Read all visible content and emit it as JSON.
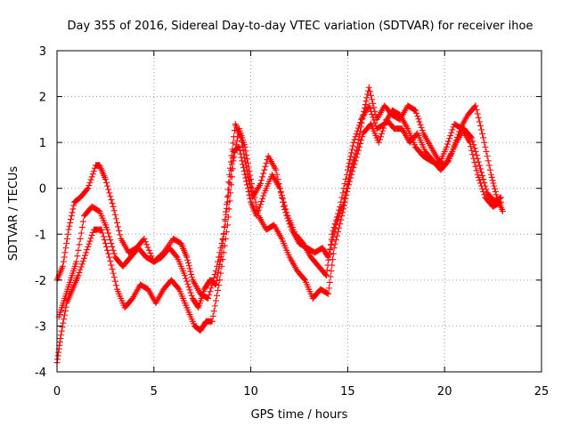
{
  "chart_data": {
    "type": "scatter",
    "title": "Day 355 of 2016, Sidereal Day-to-day VTEC variation (SDTVAR) for receiver ihoe",
    "xlabel": "GPS time / hours",
    "ylabel": "SDTVAR / TECUs",
    "xlim": [
      0,
      25
    ],
    "ylim": [
      -4,
      3
    ],
    "xticks": [
      "0",
      "5",
      "10",
      "15",
      "20",
      "25"
    ],
    "yticks": [
      "-4",
      "-3",
      "-2",
      "-1",
      "0",
      "1",
      "2",
      "3"
    ],
    "grid": true,
    "marker": "+",
    "color": "#ff0000",
    "series": [
      {
        "name": "trace-a",
        "x": [
          0.0,
          0.3,
          0.6,
          0.9,
          1.2,
          1.6,
          2.0,
          2.2,
          2.5,
          2.9,
          3.3,
          3.7,
          4.1,
          4.5,
          5.0,
          5.5,
          6.0,
          6.4,
          6.7,
          7.0,
          7.4,
          7.8,
          8.2,
          8.6,
          8.9,
          9.2,
          9.5,
          9.8,
          10.1,
          10.5,
          10.9,
          11.3,
          11.7,
          12.1,
          12.5,
          12.9,
          13.3,
          13.7,
          14.0,
          14.4,
          14.8,
          15.1,
          15.5,
          15.8,
          16.1,
          16.5,
          16.9,
          17.3,
          17.7,
          18.1,
          18.5,
          18.9,
          19.3,
          19.7,
          20.0,
          20.4,
          20.8,
          21.2,
          21.6,
          22.0,
          22.4,
          22.7,
          23.0
        ],
        "y": [
          -2.0,
          -1.7,
          -0.9,
          -0.3,
          -0.2,
          0.0,
          0.5,
          0.5,
          0.2,
          -0.4,
          -1.1,
          -1.4,
          -1.3,
          -1.1,
          -1.6,
          -1.4,
          -1.1,
          -1.2,
          -1.5,
          -2.0,
          -2.3,
          -2.4,
          -1.8,
          -1.0,
          0.3,
          1.4,
          1.1,
          0.4,
          -0.2,
          0.1,
          0.7,
          0.4,
          -0.4,
          -0.9,
          -1.2,
          -1.3,
          -1.4,
          -1.3,
          -1.5,
          -0.8,
          -0.3,
          0.3,
          0.9,
          1.6,
          2.2,
          1.5,
          1.8,
          1.6,
          1.5,
          1.8,
          1.7,
          1.2,
          0.9,
          0.6,
          0.5,
          0.8,
          1.3,
          1.6,
          1.8,
          1.1,
          0.3,
          -0.2,
          -0.5
        ]
      },
      {
        "name": "trace-b",
        "x": [
          0.0,
          0.2,
          0.5,
          0.8,
          1.1,
          1.5,
          1.9,
          2.3,
          2.7,
          3.1,
          3.5,
          3.9,
          4.3,
          4.7,
          5.1,
          5.5,
          5.9,
          6.3,
          6.7,
          7.1,
          7.4,
          7.7,
          8.0,
          8.4,
          8.8,
          9.1,
          9.4,
          9.7,
          10.0,
          10.4,
          10.8,
          11.2,
          11.6,
          12.0,
          12.4,
          12.8,
          13.2,
          13.6,
          14.0,
          14.3,
          14.7,
          15.0,
          15.4,
          15.8,
          16.2,
          16.6,
          17.0,
          17.4,
          17.8,
          18.2,
          18.6,
          19.0,
          19.4,
          19.8,
          20.2,
          20.6,
          21.0,
          21.4,
          21.8,
          22.2,
          22.6,
          22.9
        ],
        "y": [
          -3.8,
          -3.2,
          -2.5,
          -2.2,
          -1.9,
          -1.4,
          -0.9,
          -0.9,
          -1.5,
          -2.2,
          -2.6,
          -2.4,
          -2.1,
          -2.2,
          -2.5,
          -2.2,
          -2.0,
          -2.2,
          -2.6,
          -3.0,
          -3.1,
          -2.9,
          -2.9,
          -2.0,
          -0.8,
          0.6,
          1.3,
          0.9,
          0.2,
          -0.6,
          -0.9,
          -0.8,
          -1.1,
          -1.5,
          -1.8,
          -2.0,
          -2.4,
          -2.2,
          -2.3,
          -1.3,
          -0.6,
          0.0,
          0.6,
          1.2,
          1.4,
          1.0,
          1.5,
          1.3,
          1.3,
          1.0,
          1.2,
          0.8,
          0.6,
          0.4,
          0.6,
          1.0,
          1.3,
          1.1,
          0.5,
          -0.1,
          -0.3,
          -0.2
        ]
      },
      {
        "name": "trace-c",
        "x": [
          0.1,
          0.4,
          0.7,
          1.0,
          1.4,
          1.8,
          2.2,
          2.6,
          3.0,
          3.4,
          3.8,
          4.2,
          4.6,
          5.0,
          5.4,
          5.8,
          6.2,
          6.6,
          7.0,
          7.3,
          7.6,
          7.9,
          8.2,
          8.5,
          8.8,
          9.1,
          9.4,
          9.7,
          10.0,
          10.3,
          10.7,
          11.1,
          11.5,
          11.9,
          12.3,
          12.7,
          13.1,
          13.5,
          13.9,
          14.2,
          14.6,
          15.0,
          15.3,
          15.7,
          16.1,
          16.5,
          16.9,
          17.3,
          17.7,
          18.1,
          18.5,
          18.9,
          19.3,
          19.7,
          20.1,
          20.5,
          20.9,
          21.3,
          21.7,
          22.1,
          22.5,
          22.9
        ],
        "y": [
          -2.8,
          -2.4,
          -2.0,
          -1.6,
          -0.6,
          -0.4,
          -0.5,
          -0.9,
          -1.5,
          -1.7,
          -1.5,
          -1.3,
          -1.5,
          -1.6,
          -1.5,
          -1.3,
          -1.5,
          -1.9,
          -2.4,
          -2.6,
          -2.2,
          -2.0,
          -2.1,
          -1.4,
          -0.3,
          0.8,
          0.9,
          0.3,
          -0.3,
          -0.6,
          -0.1,
          0.3,
          0.0,
          -0.6,
          -1.0,
          -1.2,
          -1.5,
          -1.7,
          -1.9,
          -1.0,
          -0.4,
          0.4,
          1.0,
          1.5,
          1.8,
          1.3,
          1.4,
          1.7,
          1.6,
          1.3,
          0.9,
          0.7,
          0.6,
          0.5,
          0.9,
          1.4,
          1.3,
          1.0,
          0.3,
          -0.2,
          -0.4,
          -0.3
        ]
      }
    ]
  }
}
